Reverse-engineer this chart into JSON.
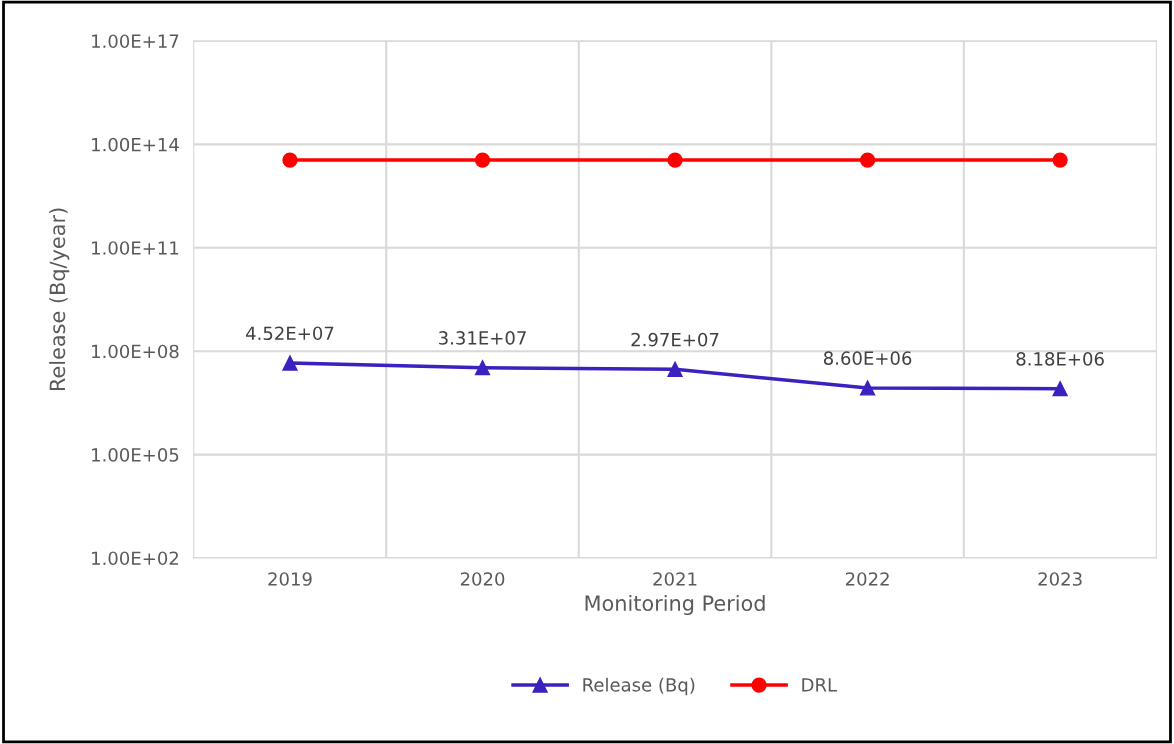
{
  "chart_data": {
    "type": "line",
    "xlabel": "Monitoring Period",
    "ylabel": "Release (Bq/year)",
    "categories": [
      "2019",
      "2020",
      "2021",
      "2022",
      "2023"
    ],
    "series": [
      {
        "name": "Release (Bq)",
        "color": "#3a22c0",
        "marker": "triangle",
        "values": [
          45200000.0,
          33100000.0,
          29700000.0,
          8600000.0,
          8180000.0
        ],
        "value_labels": [
          "4.52E+07",
          "3.31E+07",
          "2.97E+07",
          "8.60E+06",
          "8.18E+06"
        ]
      },
      {
        "name": "DRL",
        "color": "#ff0000",
        "marker": "circle",
        "values": [
          35000000000000.0,
          35000000000000.0,
          35000000000000.0,
          35000000000000.0,
          35000000000000.0
        ]
      }
    ],
    "log": "y",
    "ylim": [
      100,
      1e+17
    ],
    "yticks": [
      {
        "value": 100,
        "label": "1.00E+02"
      },
      {
        "value": 100000.0,
        "label": "1.00E+05"
      },
      {
        "value": 100000000.0,
        "label": "1.00E+08"
      },
      {
        "value": 100000000000.0,
        "label": "1.00E+11"
      },
      {
        "value": 100000000000000.0,
        "label": "1.00E+14"
      },
      {
        "value": 1e+17,
        "label": "1.00E+17"
      }
    ],
    "grid": true,
    "legend": "bottom",
    "line_style": "solid"
  }
}
